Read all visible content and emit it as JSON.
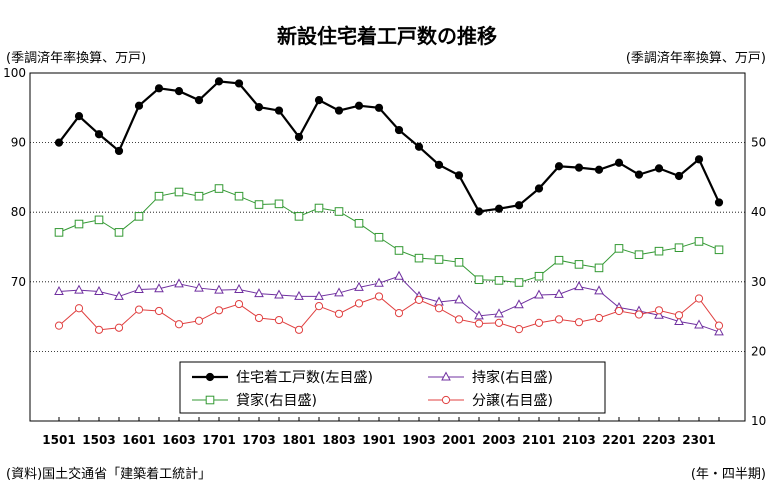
{
  "page": {
    "title": "新設住宅着工戸数の推移",
    "left_unit": "(季調済年率換算、万戸)",
    "right_unit": "(季調済年率換算、万戸)",
    "source": "(資料)国土交通省「建築着工統計」",
    "period_label": "(年・四半期)"
  },
  "chart_data": {
    "type": "line",
    "x": [
      "1501",
      "1502",
      "1503",
      "1504",
      "1601",
      "1602",
      "1603",
      "1604",
      "1701",
      "1702",
      "1703",
      "1704",
      "1801",
      "1802",
      "1803",
      "1804",
      "1901",
      "1902",
      "1903",
      "1904",
      "2001",
      "2002",
      "2003",
      "2004",
      "2101",
      "2102",
      "2103",
      "2104",
      "2201",
      "2202",
      "2203",
      "2204",
      "2301",
      "2302"
    ],
    "x_tick_labels": [
      "1501",
      "1503",
      "1601",
      "1603",
      "1701",
      "1703",
      "1801",
      "1803",
      "1901",
      "1903",
      "2001",
      "2003",
      "2101",
      "2103",
      "2201",
      "2203",
      "2301"
    ],
    "y_left": {
      "ylim": [
        50,
        100
      ],
      "ticks": [
        "70",
        "80",
        "90",
        "100"
      ]
    },
    "y_right": {
      "ylim": [
        10,
        60
      ],
      "ticks": [
        "10",
        "20",
        "30",
        "40",
        "50"
      ]
    },
    "grid": "horizontal dotted",
    "legend_position": "bottom-center",
    "series": [
      {
        "name": "住宅着工戸数(左目盛)",
        "axis": "left",
        "color": "#000000",
        "marker": "filled-circle",
        "values": [
          90.0,
          93.8,
          91.2,
          88.8,
          95.3,
          97.8,
          97.4,
          96.1,
          98.8,
          98.5,
          95.1,
          94.6,
          90.8,
          96.1,
          94.6,
          95.3,
          95.0,
          91.8,
          89.4,
          86.8,
          85.3,
          80.1,
          80.5,
          81.0,
          83.4,
          86.6,
          86.4,
          86.1,
          87.1,
          85.4,
          86.3,
          85.2,
          87.6,
          81.4
        ]
      },
      {
        "name": "持家(右目盛)",
        "axis": "right",
        "color": "#7030A0",
        "marker": "open-triangle",
        "values": [
          28.6,
          28.8,
          28.6,
          27.9,
          28.9,
          29.0,
          29.7,
          29.1,
          28.8,
          28.9,
          28.3,
          28.1,
          27.9,
          27.9,
          28.4,
          29.2,
          29.8,
          30.8,
          27.9,
          27.1,
          27.4,
          25.1,
          25.4,
          26.7,
          28.1,
          28.2,
          29.3,
          28.7,
          26.3,
          25.8,
          25.2,
          24.3,
          23.8,
          22.8
        ]
      },
      {
        "name": "貸家(右目盛)",
        "axis": "right",
        "color": "#339933",
        "marker": "open-square",
        "values": [
          37.1,
          38.3,
          38.9,
          37.1,
          39.4,
          42.3,
          42.9,
          42.3,
          43.4,
          42.3,
          41.1,
          41.2,
          39.4,
          40.6,
          40.1,
          38.4,
          36.4,
          34.5,
          33.4,
          33.2,
          32.8,
          30.3,
          30.2,
          29.9,
          30.8,
          33.1,
          32.5,
          32.0,
          34.8,
          33.9,
          34.4,
          34.9,
          35.8,
          34.6
        ]
      },
      {
        "name": "分譲(右目盛)",
        "axis": "right",
        "color": "#E04040",
        "marker": "open-circle",
        "values": [
          23.7,
          26.2,
          23.1,
          23.4,
          26.0,
          25.8,
          23.9,
          24.4,
          25.9,
          26.8,
          24.8,
          24.5,
          23.1,
          26.5,
          25.4,
          26.9,
          27.9,
          25.5,
          27.4,
          26.2,
          24.6,
          24.0,
          24.1,
          23.2,
          24.1,
          24.6,
          24.2,
          24.8,
          25.8,
          25.3,
          25.9,
          25.2,
          27.6,
          23.7
        ]
      }
    ]
  }
}
